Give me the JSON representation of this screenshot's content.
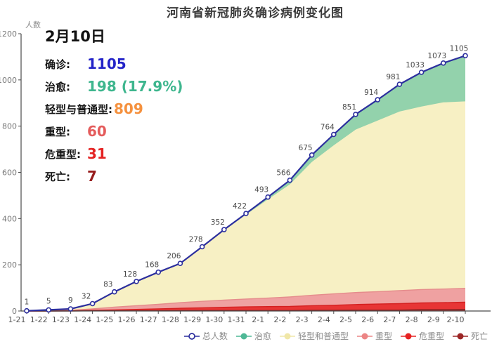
{
  "title": "河南省新冠肺炎确诊病例变化图",
  "y_axis_label": "人数",
  "info_panel": {
    "date": "2月10日",
    "rows": [
      {
        "label": "确诊:",
        "value": "1105",
        "color": "#2323c8"
      },
      {
        "label": "治愈:",
        "value": "198 (17.9%)",
        "color": "#3eb68e"
      },
      {
        "label": "轻型与普通型:",
        "value": "809",
        "color": "#f5913e"
      },
      {
        "label": "重型:",
        "value": "60",
        "color": "#e45b5b"
      },
      {
        "label": "危重型:",
        "value": "31",
        "color": "#e42222"
      },
      {
        "label": "死亡:",
        "value": "7",
        "color": "#971c1c"
      }
    ]
  },
  "legend": {
    "items": [
      {
        "label": "总人数",
        "color": "#2c2f9e",
        "marker": "open-circle"
      },
      {
        "label": "治愈",
        "color": "#4fb896",
        "marker": "filled-circle"
      },
      {
        "label": "轻型和普通型",
        "color": "#f0e7a8",
        "marker": "filled-circle"
      },
      {
        "label": "重型",
        "color": "#ec8585",
        "marker": "filled-circle"
      },
      {
        "label": "危重型",
        "color": "#e62222",
        "marker": "filled-circle"
      },
      {
        "label": "死亡",
        "color": "#9c2626",
        "marker": "filled-circle"
      }
    ]
  },
  "chart_data": {
    "type": "area",
    "stacked": true,
    "title": "河南省新冠肺炎确诊病例变化图",
    "xlabel": "",
    "ylabel": "人数",
    "ylim": [
      0,
      1200
    ],
    "yticks": [
      0,
      200,
      400,
      600,
      800,
      1000,
      1200
    ],
    "grid": false,
    "legend_position": "bottom-right",
    "x": [
      "1-21",
      "1-22",
      "1-23",
      "1-24",
      "1-25",
      "1-26",
      "1-27",
      "1-28",
      "1-29",
      "1-30",
      "1-31",
      "2-1",
      "2-2",
      "2-3",
      "2-4",
      "2-5",
      "2-6",
      "2-7",
      "2-8",
      "2-9",
      "2-10"
    ],
    "series": [
      {
        "name": "死亡",
        "color": "#a82f2f",
        "edge": "#8f2323",
        "values": [
          0,
          0,
          0,
          1,
          1,
          1,
          1,
          2,
          2,
          2,
          2,
          2,
          2,
          3,
          3,
          4,
          4,
          4,
          6,
          6,
          7
        ]
      },
      {
        "name": "危重型",
        "color": "#e73535",
        "edge": "#d42020",
        "values": [
          0,
          0,
          1,
          2,
          4,
          6,
          8,
          10,
          12,
          14,
          16,
          17,
          18,
          20,
          22,
          24,
          26,
          28,
          29,
          30,
          31
        ]
      },
      {
        "name": "重型",
        "color": "#efa1a1",
        "edge": "#e58c8c",
        "values": [
          0,
          1,
          2,
          6,
          12,
          16,
          20,
          24,
          28,
          31,
          34,
          37,
          41,
          45,
          49,
          52,
          54,
          56,
          58,
          59,
          60
        ]
      },
      {
        "name": "轻型和普通型",
        "color": "#f7f0c4",
        "edge": "#f7f0c4",
        "values": [
          1,
          4,
          6,
          23,
          66,
          105,
          139,
          169,
          234,
          302,
          365,
          427,
          487,
          577,
          643,
          705,
          740,
          775,
          792,
          808,
          809
        ]
      },
      {
        "name": "治愈",
        "color": "#93d2ac",
        "edge": "#93d2ac",
        "values": [
          0,
          0,
          0,
          0,
          0,
          0,
          0,
          1,
          2,
          3,
          5,
          10,
          18,
          30,
          47,
          66,
          90,
          118,
          148,
          170,
          198
        ]
      }
    ],
    "total": {
      "name": "总人数",
      "color": "#2c2f9e",
      "values": [
        1,
        5,
        9,
        32,
        83,
        128,
        168,
        206,
        278,
        352,
        422,
        493,
        566,
        675,
        764,
        851,
        914,
        981,
        1033,
        1073,
        1105
      ]
    }
  }
}
